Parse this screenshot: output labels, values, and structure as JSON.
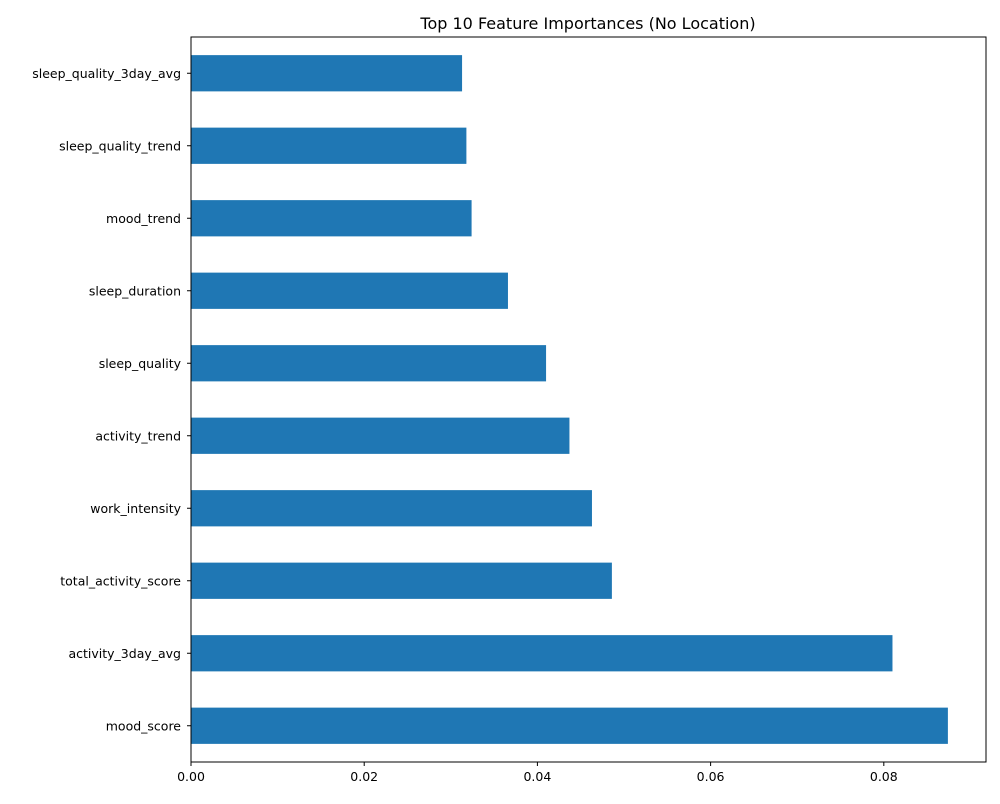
{
  "chart_data": {
    "type": "bar",
    "orientation": "horizontal",
    "title": "Top 10 Feature Importances (No Location)",
    "xlabel": "",
    "ylabel": "",
    "categories": [
      "mood_score",
      "activity_3day_avg",
      "total_activity_score",
      "work_intensity",
      "activity_trend",
      "sleep_quality",
      "sleep_duration",
      "mood_trend",
      "sleep_quality_trend",
      "sleep_quality_3day_avg"
    ],
    "values": [
      0.0874,
      0.081,
      0.0486,
      0.0463,
      0.0437,
      0.041,
      0.0366,
      0.0324,
      0.0318,
      0.0313
    ],
    "xlim": [
      0,
      0.0918
    ],
    "xticks": [
      0.0,
      0.02,
      0.04,
      0.06,
      0.08
    ],
    "xtick_labels": [
      "0.00",
      "0.02",
      "0.04",
      "0.06",
      "0.08"
    ],
    "grid": false,
    "bar_color": "#1f77b4"
  }
}
